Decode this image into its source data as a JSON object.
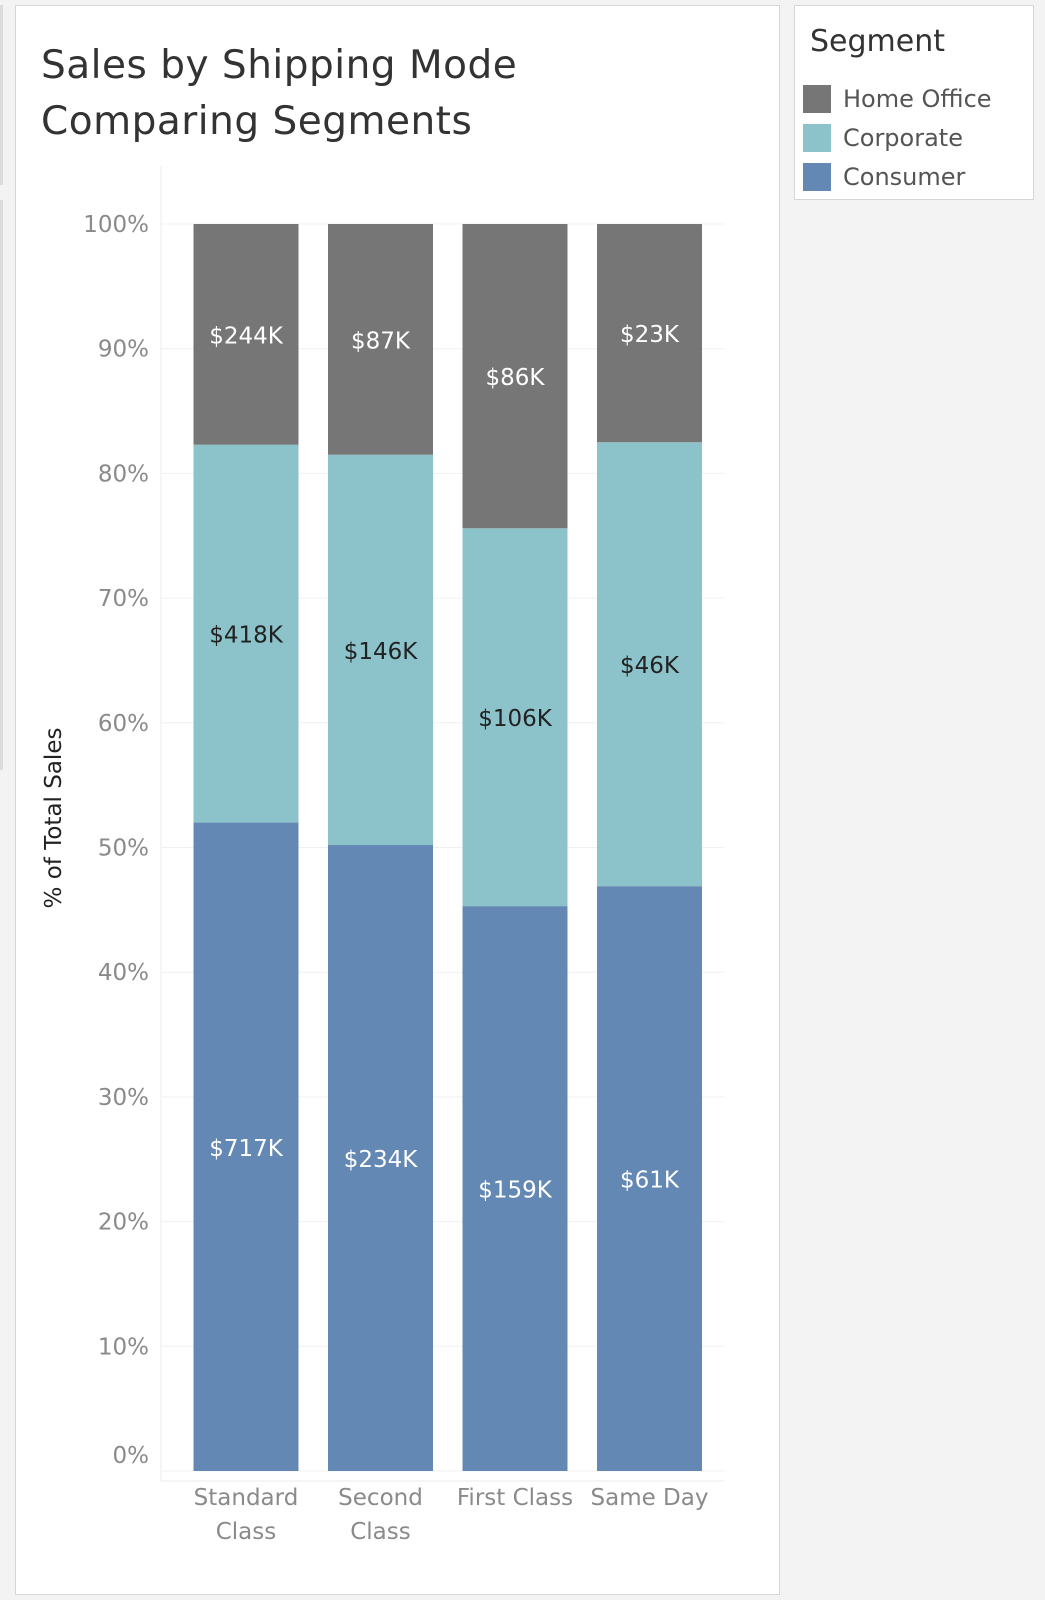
{
  "chart_data": {
    "type": "bar",
    "stacked": true,
    "title": "Sales by Shipping Mode Comparing Segments",
    "title_lines": [
      "Sales by Shipping Mode",
      "Comparing Segments"
    ],
    "xlabel": "",
    "ylabel": "% of Total Sales",
    "ylim": [
      0,
      100
    ],
    "yticks": [
      "0%",
      "10%",
      "20%",
      "30%",
      "40%",
      "50%",
      "60%",
      "70%",
      "80%",
      "90%",
      "100%"
    ],
    "categories": [
      [
        "Standard",
        "Class"
      ],
      [
        "Second",
        "Class"
      ],
      [
        "First Class"
      ],
      [
        "Same Day"
      ]
    ],
    "series": [
      {
        "name": "Consumer",
        "color": "#6388b4",
        "percent": [
          52.0,
          50.2,
          45.3,
          46.9
        ],
        "labels": [
          "$717K",
          "$234K",
          "$159K",
          "$61K"
        ],
        "label_color": "#ffffff"
      },
      {
        "name": "Corporate",
        "color": "#8cc2ca",
        "percent": [
          30.3,
          31.3,
          30.3,
          35.6
        ],
        "labels": [
          "$418K",
          "$146K",
          "$106K",
          "$46K"
        ],
        "label_color": "#222222"
      },
      {
        "name": "Home Office",
        "color": "#767676",
        "percent": [
          17.7,
          18.5,
          24.4,
          17.5
        ],
        "labels": [
          "$244K",
          "$87K",
          "$86K",
          "$23K"
        ],
        "label_color": "#ffffff"
      }
    ],
    "grid": true,
    "legend_position": "right"
  },
  "legend": {
    "title": "Segment",
    "items": [
      {
        "label": "Home Office",
        "color": "#767676"
      },
      {
        "label": "Corporate",
        "color": "#8cc2ca"
      },
      {
        "label": "Consumer",
        "color": "#6388b4"
      }
    ]
  }
}
